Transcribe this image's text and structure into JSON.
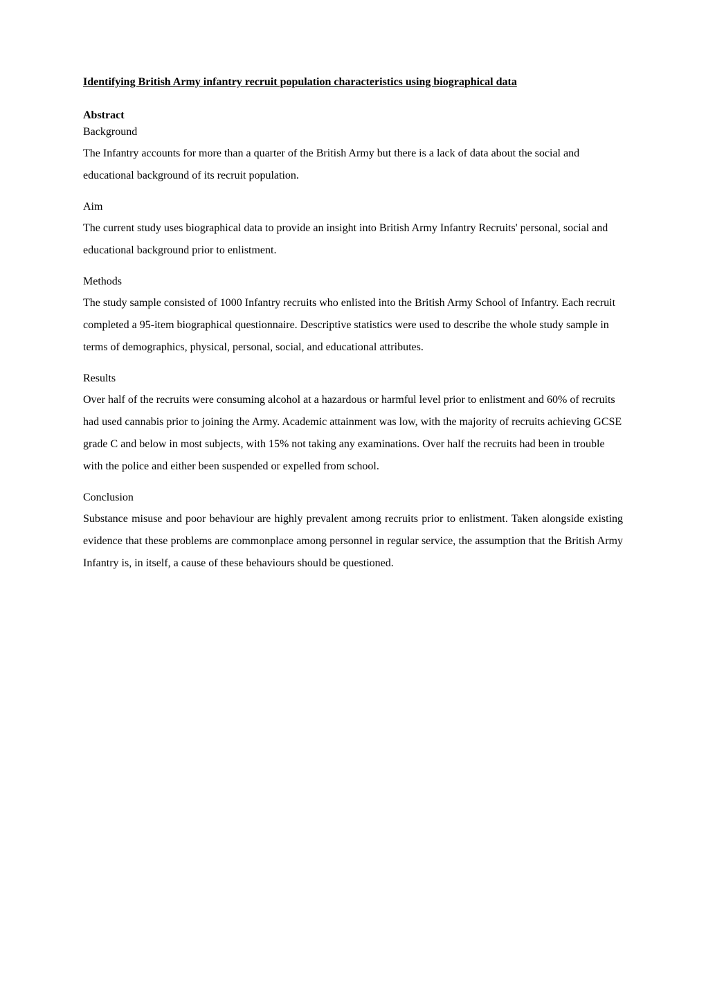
{
  "document": {
    "title": "Identifying British Army infantry recruit population characteristics using biographical data",
    "abstract_heading": "Abstract",
    "sections": {
      "background": {
        "heading": "Background",
        "body": "The Infantry accounts for more than a quarter of the British Army but there is a lack of data about the social and educational background of its recruit population."
      },
      "aim": {
        "heading": "Aim",
        "body": "The current study uses biographical data to provide an insight into British Army Infantry Recruits' personal, social and educational background prior to enlistment."
      },
      "methods": {
        "heading": "Methods",
        "body": "The study sample consisted of 1000 Infantry recruits who enlisted into the British Army School of Infantry. Each recruit completed a 95-item biographical questionnaire. Descriptive statistics were used to describe the whole study sample in terms of demographics, physical, personal, social, and educational attributes."
      },
      "results": {
        "heading": "Results",
        "body": "Over half of the recruits were consuming alcohol at a hazardous or harmful level prior to enlistment and 60% of recruits had used cannabis prior to joining the Army.  Academic attainment was low, with the majority of recruits achieving GCSE grade C and below in most subjects, with 15% not taking any examinations. Over half the recruits had been in trouble with the police and either been suspended or expelled from school."
      },
      "conclusion": {
        "heading": "Conclusion",
        "body": "Substance misuse and poor behaviour are highly prevalent among recruits prior to enlistment. Taken alongside existing evidence that these problems are commonplace among personnel in regular service, the assumption that the British Army Infantry is, in itself, a cause of these behaviours should be questioned."
      }
    }
  },
  "style": {
    "background_color": "#ffffff",
    "text_color": "#000000",
    "font_family": "Times New Roman",
    "title_fontsize": 16,
    "body_fontsize": 16,
    "line_height": 2.0
  }
}
